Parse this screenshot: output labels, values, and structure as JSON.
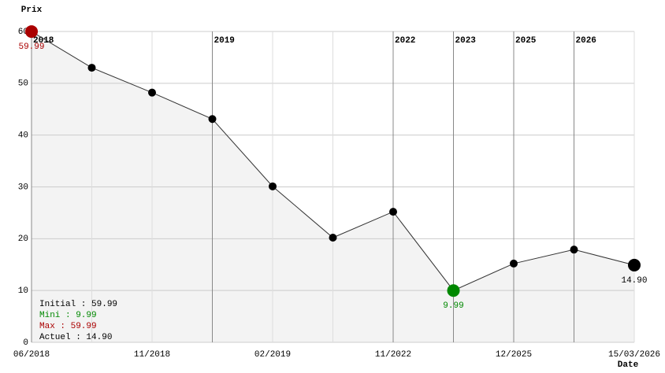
{
  "chart_data": {
    "type": "line",
    "y_label": "Prix",
    "x_label": "Date",
    "categories": [
      "06/2018",
      null,
      "11/2018",
      null,
      "02/2019",
      null,
      "11/2022",
      null,
      "12/2025",
      null,
      "15/03/2026"
    ],
    "values": [
      59.99,
      53,
      48.2,
      43.1,
      30.1,
      20.2,
      25.2,
      9.99,
      15.2,
      17.9,
      14.9
    ],
    "value_labels": [
      "59.99",
      null,
      null,
      null,
      null,
      null,
      null,
      "9.99",
      null,
      null,
      "14.90"
    ],
    "color": "#000000",
    "min_color": "#008800",
    "max_color": "#aa0000",
    "area_color": "#f3f3f3",
    "ylim": [
      0,
      60
    ],
    "yticks": [
      0,
      10,
      20,
      30,
      40,
      50,
      60
    ],
    "grid": true,
    "year_markers": [
      {
        "at": 0,
        "label": "2018"
      },
      {
        "at": 3,
        "label": "2019"
      },
      {
        "at": 6,
        "label": "2022"
      },
      {
        "at": 7,
        "label": "2023"
      },
      {
        "at": 8,
        "label": "2025"
      },
      {
        "at": 9,
        "label": "2026"
      }
    ],
    "summary": [
      "Initial : 59.99",
      "Mini : 9.99",
      "Max : 59.99",
      "Actuel : 14.90"
    ]
  }
}
